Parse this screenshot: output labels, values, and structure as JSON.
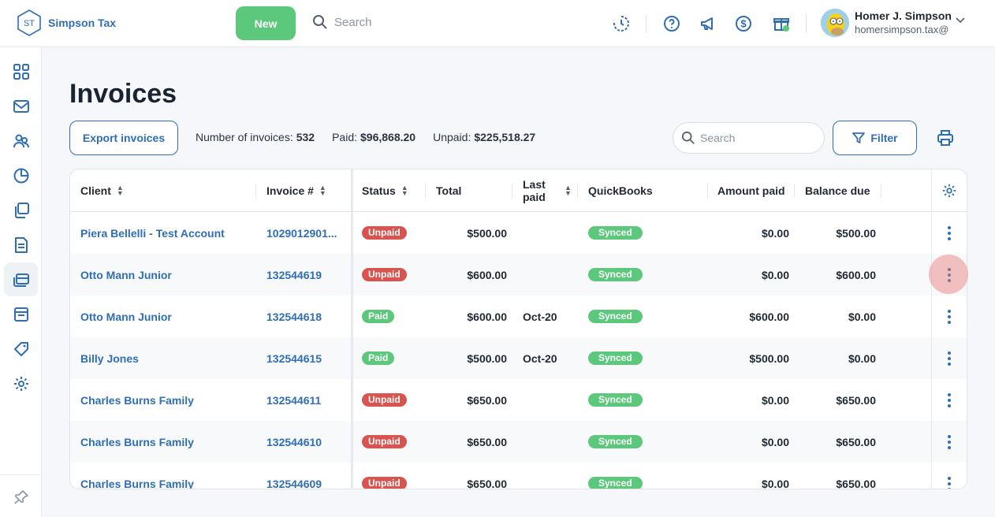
{
  "brand": {
    "initials": "ST",
    "name": "Simpson Tax"
  },
  "topbar": {
    "new_label": "New",
    "search_placeholder": "Search",
    "icons": [
      "timer-icon",
      "help-icon",
      "megaphone-icon",
      "dollar-icon",
      "gift-icon"
    ]
  },
  "user": {
    "name": "Homer J. Simpson",
    "email": "homersimpson.tax@"
  },
  "sidebar": {
    "items": [
      "dashboard-icon",
      "mail-icon",
      "clients-icon",
      "reports-icon",
      "documents-icon",
      "forms-icon",
      "invoices-icon",
      "calendar-icon",
      "tags-icon",
      "settings-icon"
    ],
    "active": "invoices-icon",
    "pin": "pin-icon"
  },
  "page": {
    "title": "Invoices",
    "export_label": "Export invoices",
    "stats": {
      "count_label": "Number of invoices:",
      "count_value": "532",
      "paid_label": "Paid:",
      "paid_value": "$96,868.20",
      "unpaid_label": "Unpaid:",
      "unpaid_value": "$225,518.27"
    },
    "search_placeholder": "Search",
    "filter_label": "Filter"
  },
  "table": {
    "columns": {
      "client": "Client",
      "invoice": "Invoice #",
      "status": "Status",
      "total": "Total",
      "last_paid": "Last paid",
      "quickbooks": "QuickBooks",
      "amount_paid": "Amount paid",
      "balance_due": "Balance due"
    },
    "rows": [
      {
        "client": "Piera Bellelli - Test Account",
        "invoice": "1029012901...",
        "status": "Unpaid",
        "total": "$500.00",
        "last_paid": "",
        "quickbooks": "Synced",
        "amount_paid": "$0.00",
        "balance_due": "$500.00"
      },
      {
        "client": "Otto Mann Junior",
        "invoice": "132544619",
        "status": "Unpaid",
        "total": "$600.00",
        "last_paid": "",
        "quickbooks": "Synced",
        "amount_paid": "$0.00",
        "balance_due": "$600.00"
      },
      {
        "client": "Otto Mann Junior",
        "invoice": "132544618",
        "status": "Paid",
        "total": "$600.00",
        "last_paid": "Oct-20",
        "quickbooks": "Synced",
        "amount_paid": "$600.00",
        "balance_due": "$0.00"
      },
      {
        "client": "Billy Jones",
        "invoice": "132544615",
        "status": "Paid",
        "total": "$500.00",
        "last_paid": "Oct-20",
        "quickbooks": "Synced",
        "amount_paid": "$500.00",
        "balance_due": "$0.00"
      },
      {
        "client": "Charles Burns Family",
        "invoice": "132544611",
        "status": "Unpaid",
        "total": "$650.00",
        "last_paid": "",
        "quickbooks": "Synced",
        "amount_paid": "$0.00",
        "balance_due": "$650.00"
      },
      {
        "client": "Charles Burns Family",
        "invoice": "132544610",
        "status": "Unpaid",
        "total": "$650.00",
        "last_paid": "",
        "quickbooks": "Synced",
        "amount_paid": "$0.00",
        "balance_due": "$650.00"
      },
      {
        "client": "Charles Burns Family",
        "invoice": "132544609",
        "status": "Unpaid",
        "total": "$650.00",
        "last_paid": "",
        "quickbooks": "Synced",
        "amount_paid": "$0.00",
        "balance_due": "$650.00"
      }
    ]
  },
  "colors": {
    "brand_blue": "#2f6eb5",
    "green": "#5cc87c",
    "red": "#d9534f"
  }
}
